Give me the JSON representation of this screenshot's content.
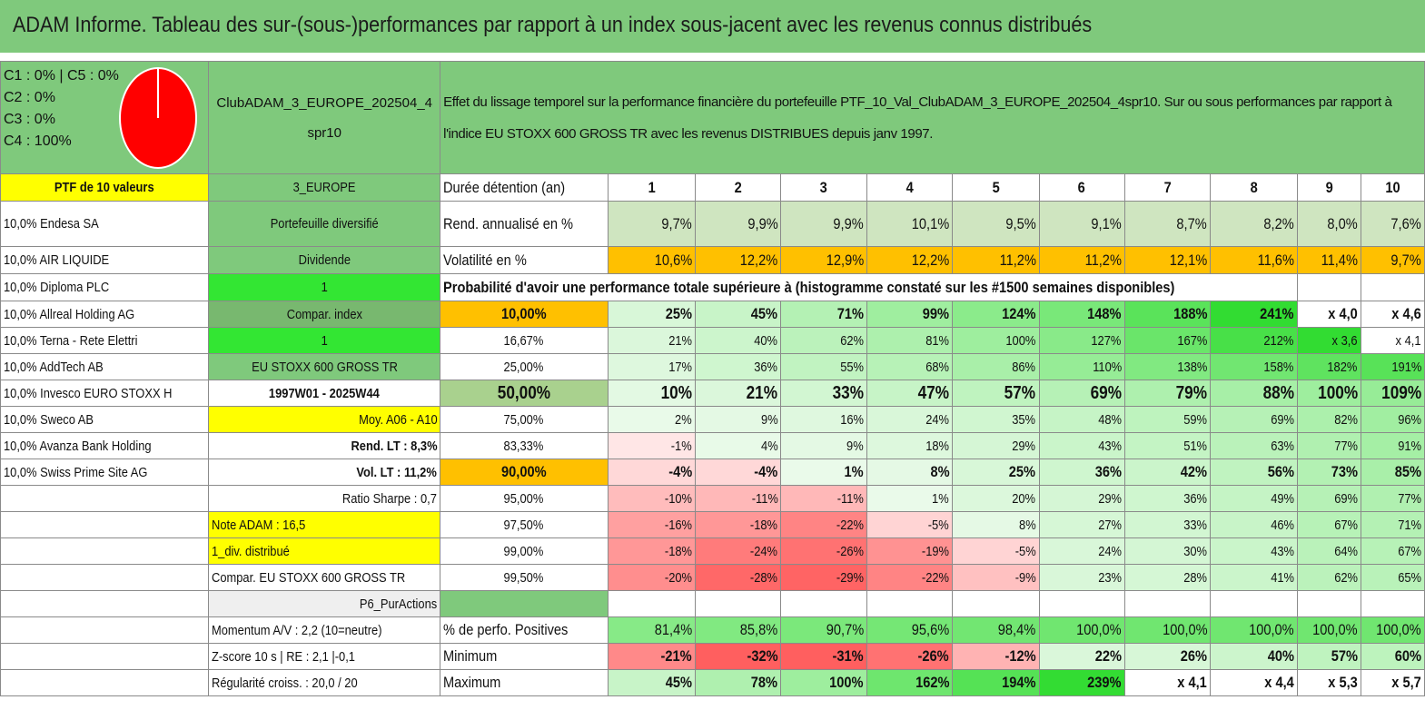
{
  "title": "ADAM Informe. Tableau des sur-(sous-)performances par rapport à un index sous-jacent avec les revenus connus distribués",
  "legend": {
    "lines": [
      "C1 : 0% | C5 : 0%",
      "C2 : 0%",
      "C3 : 0%",
      "C4 : 100%"
    ],
    "pie_color": "#ff0000"
  },
  "club_name": "ClubADAM_3_EUROPE_202504_4spr10",
  "description": "Effet du lissage temporel sur la performance financière du portefeuille PTF_10_Val_ClubADAM_3_EUROPE_202504_4spr10. Sur ou sous performances par rapport à l'indice EU STOXX 600 GROSS TR avec les revenus DISTRIBUES depuis janv 1997.",
  "ptf_label": "PTF de 10 valeurs",
  "region": "3_EUROPE",
  "holdings": [
    "10,0% Endesa SA",
    "10,0% AIR LIQUIDE",
    "10,0% Diploma PLC",
    "10,0% Allreal Holding AG",
    "10,0% Terna - Rete Elettri",
    "10,0% AddTech AB",
    "10,0% Invesco EURO STOXX H",
    "10,0% Sweco AB",
    "10,0% Avanza Bank Holding",
    "10,0% Swiss Prime Site AG"
  ],
  "info": {
    "portefeuille": "Portefeuille diversifié",
    "dividende": "Dividende",
    "val1": "1",
    "compar_index": "Compar. index",
    "val2": "1",
    "index_name": "EU STOXX 600 GROSS TR",
    "period": "1997W01 - 2025W44",
    "moy": "Moy. A06 - A10",
    "rend_lt": "Rend. LT : 8,3%",
    "vol_lt": "Vol. LT : 11,2%",
    "sharpe": "Ratio Sharpe : 0,7",
    "note": "Note ADAM : 16,5",
    "div": "1_div. distribué",
    "compar": "Compar. EU STOXX 600 GROSS TR",
    "strategy": "P6_PurActions",
    "momentum": "Momentum A/V : 2,2 (10=neutre)",
    "zscore": "Z-score 10 s | RE : 2,1 |-0,1",
    "regularite": "Régularité croiss. : 20,0 / 20"
  },
  "duration_label": "Durée détention (an)",
  "years": [
    "1",
    "2",
    "3",
    "4",
    "5",
    "6",
    "7",
    "8",
    "9",
    "10"
  ],
  "rend_label": "Rend. annualisé en %",
  "rend": [
    "9,7%",
    "9,9%",
    "9,9%",
    "10,1%",
    "9,5%",
    "9,1%",
    "8,7%",
    "8,2%",
    "8,0%",
    "7,6%"
  ],
  "vol_label": "Volatilité en %",
  "vol": [
    "10,6%",
    "12,2%",
    "12,9%",
    "12,2%",
    "11,2%",
    "11,2%",
    "12,1%",
    "11,6%",
    "11,4%",
    "9,7%"
  ],
  "prob_title": "Probabilité d'avoir une performance totale supérieure à (histogramme constaté sur les #1500 semaines disponibles)",
  "quantiles": [
    {
      "q": "10,00%",
      "v": [
        "25%",
        "45%",
        "71%",
        "99%",
        "124%",
        "148%",
        "188%",
        "241%",
        "x 4,0",
        "x 4,6"
      ]
    },
    {
      "q": "16,67%",
      "v": [
        "21%",
        "40%",
        "62%",
        "81%",
        "100%",
        "127%",
        "167%",
        "212%",
        "x 3,6",
        "x 4,1"
      ]
    },
    {
      "q": "25,00%",
      "v": [
        "17%",
        "36%",
        "55%",
        "68%",
        "86%",
        "110%",
        "138%",
        "158%",
        "182%",
        "191%"
      ]
    },
    {
      "q": "50,00%",
      "v": [
        "10%",
        "21%",
        "33%",
        "47%",
        "57%",
        "69%",
        "79%",
        "88%",
        "100%",
        "109%"
      ]
    },
    {
      "q": "75,00%",
      "v": [
        "2%",
        "9%",
        "16%",
        "24%",
        "35%",
        "48%",
        "59%",
        "69%",
        "82%",
        "96%"
      ]
    },
    {
      "q": "83,33%",
      "v": [
        "-1%",
        "4%",
        "9%",
        "18%",
        "29%",
        "43%",
        "51%",
        "63%",
        "77%",
        "91%"
      ]
    },
    {
      "q": "90,00%",
      "v": [
        "-4%",
        "-4%",
        "1%",
        "8%",
        "25%",
        "36%",
        "42%",
        "56%",
        "73%",
        "85%"
      ]
    },
    {
      "q": "95,00%",
      "v": [
        "-10%",
        "-11%",
        "-11%",
        "1%",
        "20%",
        "29%",
        "36%",
        "49%",
        "69%",
        "77%"
      ]
    },
    {
      "q": "97,50%",
      "v": [
        "-16%",
        "-18%",
        "-22%",
        "-5%",
        "8%",
        "27%",
        "33%",
        "46%",
        "67%",
        "71%"
      ]
    },
    {
      "q": "99,00%",
      "v": [
        "-18%",
        "-24%",
        "-26%",
        "-19%",
        "-5%",
        "24%",
        "30%",
        "43%",
        "64%",
        "67%"
      ]
    },
    {
      "q": "99,50%",
      "v": [
        "-20%",
        "-28%",
        "-29%",
        "-22%",
        "-9%",
        "23%",
        "28%",
        "41%",
        "62%",
        "65%"
      ]
    }
  ],
  "pos_label": "% de perfo. Positives",
  "pos": [
    "81,4%",
    "85,8%",
    "90,7%",
    "95,6%",
    "98,4%",
    "100,0%",
    "100,0%",
    "100,0%",
    "100,0%",
    "100,0%"
  ],
  "min_label": "Minimum",
  "min": [
    "-21%",
    "-32%",
    "-31%",
    "-26%",
    "-12%",
    "22%",
    "26%",
    "40%",
    "57%",
    "60%"
  ],
  "max_label": "Maximum",
  "max": [
    "45%",
    "78%",
    "100%",
    "162%",
    "194%",
    "239%",
    "x 4,1",
    "x 4,4",
    "x 5,3",
    "x 5,7"
  ],
  "colors": {
    "header_green": "#7fc97c",
    "highlight_yellow": "#ffff00",
    "bright_green": "#33e633",
    "orange": "#ffc000",
    "text_red": "#e01010",
    "pie_red": "#ff0000"
  }
}
